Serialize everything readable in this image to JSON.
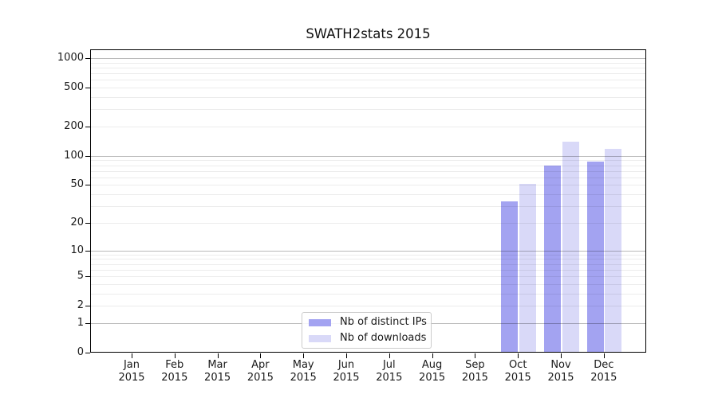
{
  "chart_data": {
    "type": "bar",
    "title": "SWATH2stats 2015",
    "categories": [
      {
        "month": "Jan",
        "year": "2015"
      },
      {
        "month": "Feb",
        "year": "2015"
      },
      {
        "month": "Mar",
        "year": "2015"
      },
      {
        "month": "Apr",
        "year": "2015"
      },
      {
        "month": "May",
        "year": "2015"
      },
      {
        "month": "Jun",
        "year": "2015"
      },
      {
        "month": "Jul",
        "year": "2015"
      },
      {
        "month": "Aug",
        "year": "2015"
      },
      {
        "month": "Sep",
        "year": "2015"
      },
      {
        "month": "Oct",
        "year": "2015"
      },
      {
        "month": "Nov",
        "year": "2015"
      },
      {
        "month": "Dec",
        "year": "2015"
      }
    ],
    "series": [
      {
        "name": "Nb of distinct IPs",
        "slug": "distinct-ips",
        "color": "#a3a3f1",
        "values": [
          0,
          0,
          0,
          0,
          0,
          0,
          0,
          0,
          0,
          34,
          80,
          87
        ]
      },
      {
        "name": "Nb of downloads",
        "slug": "downloads",
        "color": "#d9d9f8",
        "values": [
          0,
          0,
          0,
          0,
          0,
          0,
          0,
          0,
          0,
          51,
          140,
          118
        ]
      }
    ],
    "yscale": "log1p",
    "yticks": [
      0,
      1,
      2,
      5,
      10,
      20,
      50,
      100,
      200,
      500,
      1000
    ],
    "grid": {
      "major": [
        1,
        10,
        100,
        1000
      ],
      "minor_per_decade": [
        2,
        3,
        4,
        5,
        6,
        7,
        8,
        9
      ],
      "orientation": "horizontal"
    },
    "legend": {
      "position": "bottom-center"
    },
    "colors": {
      "axis": "#000000",
      "text": "#1a1a1a",
      "grid_major": "rgba(0,0,0,0.27)",
      "grid_minor": "rgba(0,0,0,0.075)",
      "background": "#ffffff"
    }
  }
}
